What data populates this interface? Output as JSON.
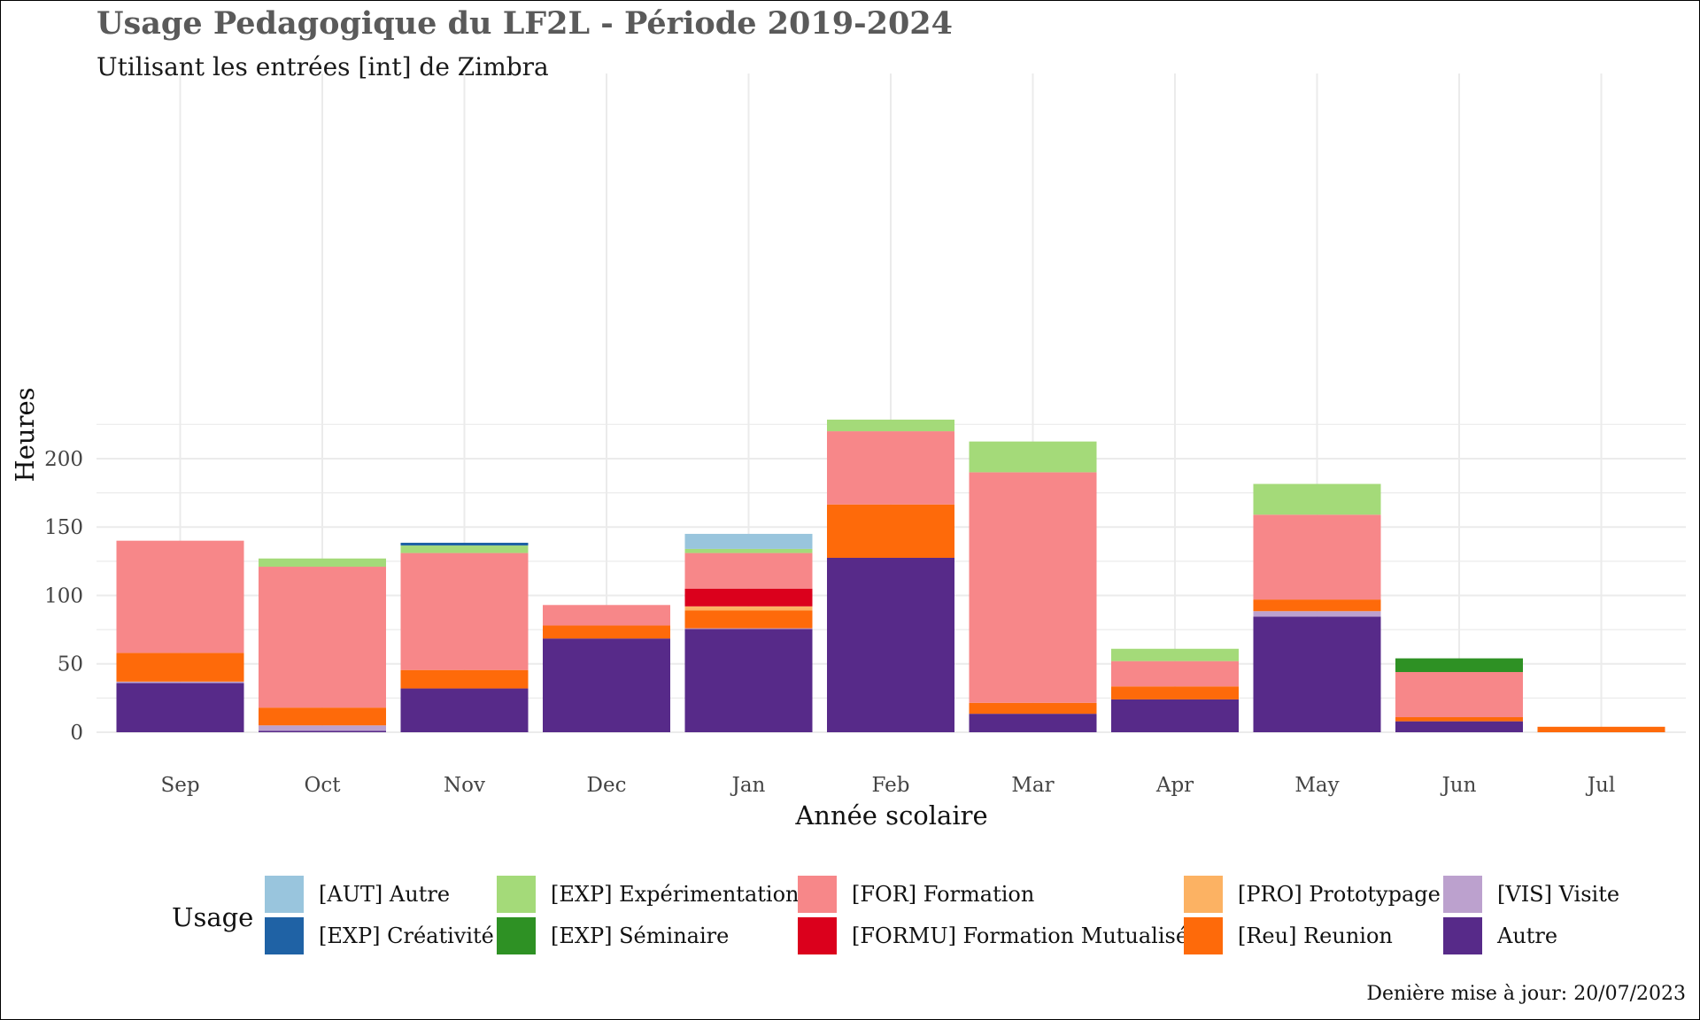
{
  "chart_data": {
    "type": "bar",
    "stacked": true,
    "title": "Usage Pedagogique du LF2L - Période 2019-2024",
    "subtitle": "Utilisant les entrées [int] de Zimbra",
    "xlabel": "Année scolaire",
    "ylabel": "Heures",
    "ylim": [
      0,
      240
    ],
    "yticks": [
      0,
      50,
      100,
      150,
      200
    ],
    "grid": true,
    "legend": {
      "title": "Usage",
      "position": "bottom"
    },
    "caption": "Denière mise à jour: 20/07/2023",
    "categories": [
      "Sep",
      "Oct",
      "Nov",
      "Dec",
      "Jan",
      "Feb",
      "Mar",
      "Apr",
      "May",
      "Jun",
      "Jul"
    ],
    "series": [
      {
        "name": "Autre",
        "color": "#572a89",
        "values": [
          36,
          1,
          32,
          68.5,
          75.5,
          127.5,
          13.5,
          24,
          84.5,
          8,
          0
        ]
      },
      {
        "name": "[VIS] Visite",
        "color": "#bca1ce",
        "values": [
          1,
          4,
          0,
          0,
          0.5,
          0,
          0,
          0,
          4,
          0,
          0
        ]
      },
      {
        "name": "[Reu] Reunion",
        "color": "#fe6a0a",
        "values": [
          21,
          13,
          13.5,
          9.5,
          13,
          39,
          8,
          9.5,
          8.5,
          3,
          4
        ]
      },
      {
        "name": "[PRO] Prototypage",
        "color": "#fcb263",
        "values": [
          0,
          0,
          0,
          0,
          3,
          0,
          0,
          0,
          0,
          0,
          0
        ]
      },
      {
        "name": "[FORMU] Formation Mutualisé",
        "color": "#db001c",
        "values": [
          0,
          0,
          0,
          0,
          13,
          0,
          0,
          0,
          0,
          0,
          0
        ]
      },
      {
        "name": "[FOR] Formation",
        "color": "#f78789",
        "values": [
          82,
          103,
          85.5,
          15,
          26,
          53.5,
          168.5,
          18.5,
          62,
          33,
          0
        ]
      },
      {
        "name": "[EXP] Séminaire",
        "color": "#2e9124",
        "values": [
          0,
          0,
          0,
          0,
          0,
          0,
          0,
          0,
          0,
          10,
          0
        ]
      },
      {
        "name": "[EXP] Expérimentation",
        "color": "#a4da79",
        "values": [
          0,
          6,
          5.5,
          0,
          3,
          8.5,
          22.5,
          9,
          22.5,
          0,
          0
        ]
      },
      {
        "name": "[EXP] Créativité",
        "color": "#1f62a5",
        "values": [
          0,
          0,
          2,
          0,
          0,
          0,
          0,
          0,
          0,
          0,
          0
        ]
      },
      {
        "name": "[AUT] Autre",
        "color": "#99c5dd",
        "values": [
          0,
          0,
          0,
          0,
          11,
          0,
          0,
          0,
          0,
          0,
          0
        ]
      }
    ],
    "legend_order": [
      "[AUT] Autre",
      "[EXP] Créativité",
      "[EXP] Expérimentation",
      "[EXP] Séminaire",
      "[FOR] Formation",
      "[FORMU] Formation Mutualisé",
      "[PRO] Prototypage",
      "[Reu] Reunion",
      "[VIS] Visite",
      "Autre"
    ]
  }
}
